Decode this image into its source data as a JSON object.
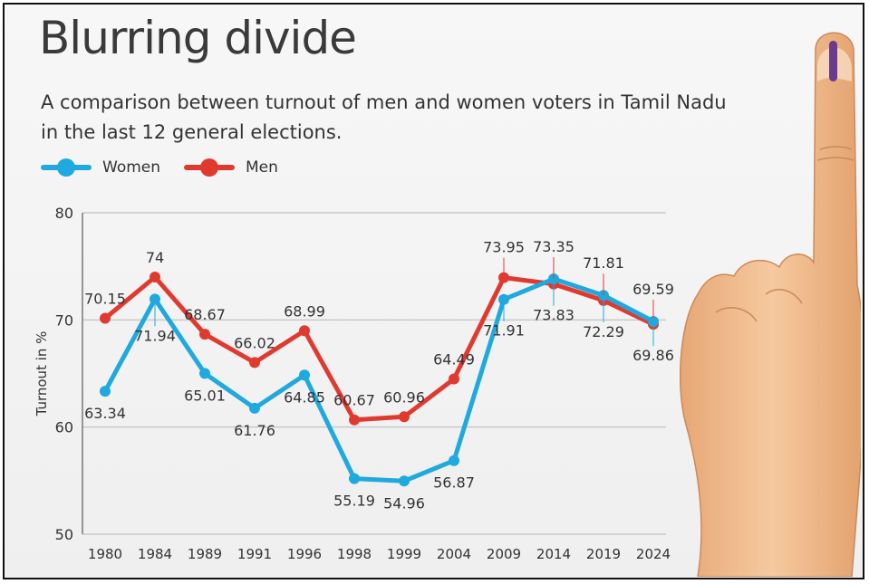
{
  "header": {
    "title": "Blurring divide",
    "subtitle": "A comparison between turnout of men and women voters in Tamil Nadu in the last 12 general elections."
  },
  "legend": {
    "women_label": "Women",
    "men_label": "Men"
  },
  "colors": {
    "women": "#1fa9de",
    "men": "#e03a30",
    "grid": "#c9c9c9",
    "text": "#333333"
  },
  "icons": {
    "hand": "inked-finger-hand-icon"
  },
  "chart_data": {
    "type": "line",
    "title": "Blurring divide",
    "ylabel": "Turnout in %",
    "xlabel": "",
    "ylim": [
      50,
      80
    ],
    "yticks": [
      50,
      60,
      70,
      80
    ],
    "grid": true,
    "legend_position": "top-left",
    "categories": [
      "1980",
      "1984",
      "1989",
      "1991",
      "1996",
      "1998",
      "1999",
      "2004",
      "2009",
      "2014",
      "2019",
      "2024"
    ],
    "series": [
      {
        "name": "Women",
        "values": [
          63.34,
          71.94,
          65.01,
          61.76,
          64.85,
          55.19,
          54.96,
          56.87,
          71.91,
          73.83,
          72.29,
          69.86
        ]
      },
      {
        "name": "Men",
        "values": [
          70.15,
          74,
          68.67,
          66.02,
          68.99,
          60.67,
          60.96,
          64.49,
          73.95,
          73.35,
          71.81,
          69.59
        ]
      }
    ],
    "labels": {
      "women": [
        "63.34",
        "71.94",
        "65.01",
        "61.76",
        "64.85",
        "55.19",
        "54.96",
        "56.87",
        "71.91",
        "73.83",
        "72.29",
        "69.86"
      ],
      "men": [
        "70.15",
        "74",
        "68.67",
        "66.02",
        "68.99",
        "60.67",
        "60.96",
        "64.49",
        "73.95",
        "73.35",
        "71.81",
        "69.59"
      ]
    }
  }
}
